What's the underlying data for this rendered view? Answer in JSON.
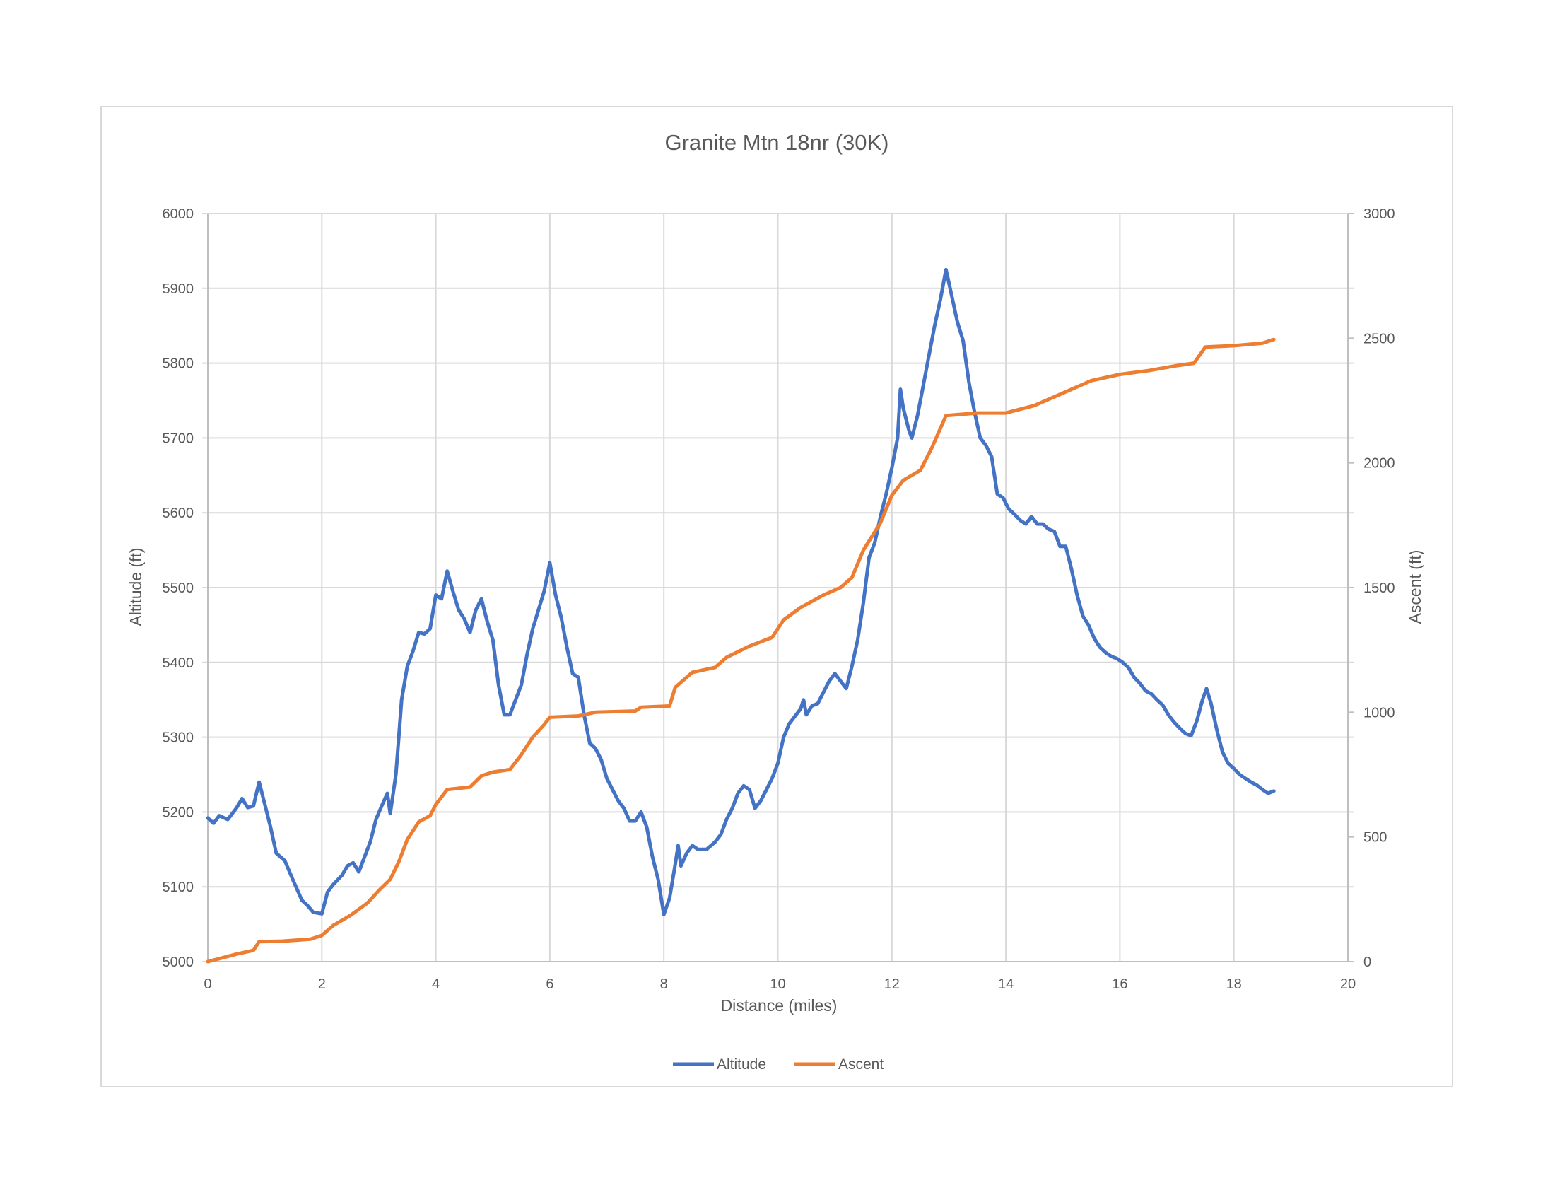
{
  "chart_data": {
    "type": "line",
    "title": "Granite Mtn 18nr (30K)",
    "xlabel": "Distance (miles)",
    "ylabel": "Altitude (ft)",
    "y2label": "Ascent (ft)",
    "xlim": [
      0,
      20
    ],
    "ylim": [
      5000,
      6000
    ],
    "y2lim": [
      0,
      3000
    ],
    "x_ticks": [
      0,
      2,
      4,
      6,
      8,
      10,
      12,
      14,
      16,
      18,
      20
    ],
    "y_ticks": [
      5000,
      5100,
      5200,
      5300,
      5400,
      5500,
      5600,
      5700,
      5800,
      5900,
      6000
    ],
    "y2_ticks": [
      0,
      500,
      1000,
      1500,
      2000,
      2500,
      3000
    ],
    "grid": true,
    "legend": "bottom",
    "series": [
      {
        "name": "Altitude",
        "axis": "left",
        "color": "#4472c4",
        "points": [
          [
            0,
            5192
          ],
          [
            0.1,
            5185
          ],
          [
            0.2,
            5195
          ],
          [
            0.35,
            5190
          ],
          [
            0.5,
            5205
          ],
          [
            0.6,
            5218
          ],
          [
            0.7,
            5206
          ],
          [
            0.8,
            5208
          ],
          [
            0.9,
            5240
          ],
          [
            1.0,
            5210
          ],
          [
            1.1,
            5180
          ],
          [
            1.2,
            5145
          ],
          [
            1.35,
            5135
          ],
          [
            1.5,
            5108
          ],
          [
            1.65,
            5082
          ],
          [
            1.75,
            5075
          ],
          [
            1.85,
            5066
          ],
          [
            2.0,
            5064
          ],
          [
            2.1,
            5093
          ],
          [
            2.2,
            5103
          ],
          [
            2.35,
            5115
          ],
          [
            2.45,
            5128
          ],
          [
            2.55,
            5132
          ],
          [
            2.65,
            5120
          ],
          [
            2.75,
            5140
          ],
          [
            2.85,
            5160
          ],
          [
            2.95,
            5190
          ],
          [
            3.05,
            5208
          ],
          [
            3.15,
            5225
          ],
          [
            3.2,
            5198
          ],
          [
            3.3,
            5250
          ],
          [
            3.35,
            5300
          ],
          [
            3.4,
            5350
          ],
          [
            3.5,
            5395
          ],
          [
            3.6,
            5415
          ],
          [
            3.7,
            5440
          ],
          [
            3.8,
            5438
          ],
          [
            3.9,
            5445
          ],
          [
            4.0,
            5490
          ],
          [
            4.1,
            5485
          ],
          [
            4.2,
            5522
          ],
          [
            4.3,
            5495
          ],
          [
            4.4,
            5470
          ],
          [
            4.5,
            5458
          ],
          [
            4.6,
            5440
          ],
          [
            4.7,
            5470
          ],
          [
            4.8,
            5485
          ],
          [
            4.9,
            5455
          ],
          [
            5.0,
            5430
          ],
          [
            5.1,
            5370
          ],
          [
            5.2,
            5330
          ],
          [
            5.3,
            5330
          ],
          [
            5.4,
            5350
          ],
          [
            5.5,
            5370
          ],
          [
            5.6,
            5410
          ],
          [
            5.7,
            5445
          ],
          [
            5.8,
            5470
          ],
          [
            5.9,
            5495
          ],
          [
            6.0,
            5533
          ],
          [
            6.1,
            5490
          ],
          [
            6.2,
            5460
          ],
          [
            6.3,
            5420
          ],
          [
            6.4,
            5385
          ],
          [
            6.5,
            5380
          ],
          [
            6.6,
            5330
          ],
          [
            6.7,
            5292
          ],
          [
            6.8,
            5285
          ],
          [
            6.9,
            5270
          ],
          [
            7.0,
            5245
          ],
          [
            7.1,
            5230
          ],
          [
            7.2,
            5215
          ],
          [
            7.3,
            5205
          ],
          [
            7.4,
            5188
          ],
          [
            7.5,
            5188
          ],
          [
            7.6,
            5200
          ],
          [
            7.7,
            5180
          ],
          [
            7.8,
            5140
          ],
          [
            7.9,
            5110
          ],
          [
            8.0,
            5063
          ],
          [
            8.1,
            5085
          ],
          [
            8.2,
            5130
          ],
          [
            8.25,
            5155
          ],
          [
            8.3,
            5128
          ],
          [
            8.4,
            5145
          ],
          [
            8.5,
            5155
          ],
          [
            8.6,
            5150
          ],
          [
            8.75,
            5150
          ],
          [
            8.9,
            5160
          ],
          [
            9.0,
            5170
          ],
          [
            9.1,
            5190
          ],
          [
            9.2,
            5205
          ],
          [
            9.3,
            5225
          ],
          [
            9.4,
            5235
          ],
          [
            9.5,
            5230
          ],
          [
            9.6,
            5205
          ],
          [
            9.7,
            5215
          ],
          [
            9.8,
            5230
          ],
          [
            9.9,
            5245
          ],
          [
            10.0,
            5265
          ],
          [
            10.1,
            5300
          ],
          [
            10.2,
            5318
          ],
          [
            10.3,
            5328
          ],
          [
            10.4,
            5338
          ],
          [
            10.45,
            5350
          ],
          [
            10.5,
            5330
          ],
          [
            10.6,
            5342
          ],
          [
            10.7,
            5345
          ],
          [
            10.8,
            5360
          ],
          [
            10.9,
            5375
          ],
          [
            11.0,
            5385
          ],
          [
            11.1,
            5375
          ],
          [
            11.2,
            5365
          ],
          [
            11.3,
            5395
          ],
          [
            11.4,
            5430
          ],
          [
            11.5,
            5480
          ],
          [
            11.6,
            5540
          ],
          [
            11.7,
            5560
          ],
          [
            11.8,
            5595
          ],
          [
            11.9,
            5625
          ],
          [
            12.0,
            5660
          ],
          [
            12.1,
            5700
          ],
          [
            12.15,
            5765
          ],
          [
            12.2,
            5740
          ],
          [
            12.3,
            5710
          ],
          [
            12.35,
            5700
          ],
          [
            12.45,
            5730
          ],
          [
            12.55,
            5770
          ],
          [
            12.65,
            5810
          ],
          [
            12.75,
            5850
          ],
          [
            12.85,
            5885
          ],
          [
            12.95,
            5925
          ],
          [
            13.05,
            5890
          ],
          [
            13.15,
            5855
          ],
          [
            13.25,
            5830
          ],
          [
            13.35,
            5775
          ],
          [
            13.45,
            5735
          ],
          [
            13.55,
            5700
          ],
          [
            13.65,
            5690
          ],
          [
            13.75,
            5675
          ],
          [
            13.85,
            5625
          ],
          [
            13.95,
            5620
          ],
          [
            14.05,
            5605
          ],
          [
            14.15,
            5598
          ],
          [
            14.25,
            5590
          ],
          [
            14.35,
            5585
          ],
          [
            14.45,
            5595
          ],
          [
            14.55,
            5585
          ],
          [
            14.65,
            5585
          ],
          [
            14.75,
            5578
          ],
          [
            14.85,
            5575
          ],
          [
            14.95,
            5555
          ],
          [
            15.05,
            5555
          ],
          [
            15.15,
            5525
          ],
          [
            15.25,
            5490
          ],
          [
            15.35,
            5462
          ],
          [
            15.45,
            5450
          ],
          [
            15.55,
            5432
          ],
          [
            15.65,
            5420
          ],
          [
            15.75,
            5413
          ],
          [
            15.85,
            5408
          ],
          [
            15.95,
            5405
          ],
          [
            16.05,
            5400
          ],
          [
            16.15,
            5393
          ],
          [
            16.25,
            5380
          ],
          [
            16.35,
            5372
          ],
          [
            16.45,
            5362
          ],
          [
            16.55,
            5358
          ],
          [
            16.65,
            5350
          ],
          [
            16.75,
            5343
          ],
          [
            16.85,
            5330
          ],
          [
            16.95,
            5320
          ],
          [
            17.05,
            5312
          ],
          [
            17.15,
            5305
          ],
          [
            17.25,
            5302
          ],
          [
            17.35,
            5322
          ],
          [
            17.45,
            5350
          ],
          [
            17.52,
            5365
          ],
          [
            17.6,
            5345
          ],
          [
            17.7,
            5310
          ],
          [
            17.8,
            5280
          ],
          [
            17.9,
            5265
          ],
          [
            18.0,
            5258
          ],
          [
            18.1,
            5250
          ],
          [
            18.2,
            5245
          ],
          [
            18.3,
            5240
          ],
          [
            18.4,
            5236
          ],
          [
            18.5,
            5230
          ],
          [
            18.6,
            5225
          ],
          [
            18.7,
            5228
          ]
        ]
      },
      {
        "name": "Ascent",
        "axis": "right",
        "color": "#ed7d31",
        "points": [
          [
            0,
            0
          ],
          [
            0.2,
            12
          ],
          [
            0.5,
            30
          ],
          [
            0.8,
            45
          ],
          [
            0.9,
            80
          ],
          [
            1.3,
            82
          ],
          [
            1.8,
            90
          ],
          [
            2.0,
            105
          ],
          [
            2.2,
            145
          ],
          [
            2.5,
            185
          ],
          [
            2.8,
            235
          ],
          [
            3.0,
            285
          ],
          [
            3.2,
            330
          ],
          [
            3.35,
            400
          ],
          [
            3.5,
            490
          ],
          [
            3.7,
            560
          ],
          [
            3.9,
            585
          ],
          [
            4.0,
            630
          ],
          [
            4.2,
            690
          ],
          [
            4.6,
            700
          ],
          [
            4.8,
            745
          ],
          [
            5.0,
            760
          ],
          [
            5.3,
            770
          ],
          [
            5.5,
            830
          ],
          [
            5.7,
            900
          ],
          [
            5.9,
            950
          ],
          [
            6.0,
            980
          ],
          [
            6.5,
            985
          ],
          [
            6.8,
            1000
          ],
          [
            7.5,
            1005
          ],
          [
            7.6,
            1020
          ],
          [
            8.1,
            1025
          ],
          [
            8.2,
            1100
          ],
          [
            8.5,
            1160
          ],
          [
            8.9,
            1180
          ],
          [
            9.1,
            1220
          ],
          [
            9.5,
            1265
          ],
          [
            9.9,
            1300
          ],
          [
            10.1,
            1370
          ],
          [
            10.4,
            1420
          ],
          [
            10.8,
            1470
          ],
          [
            11.1,
            1500
          ],
          [
            11.3,
            1540
          ],
          [
            11.5,
            1650
          ],
          [
            11.8,
            1760
          ],
          [
            12.0,
            1870
          ],
          [
            12.2,
            1930
          ],
          [
            12.5,
            1970
          ],
          [
            12.7,
            2060
          ],
          [
            12.95,
            2190
          ],
          [
            13.5,
            2200
          ],
          [
            14.0,
            2200
          ],
          [
            14.5,
            2230
          ],
          [
            15.0,
            2280
          ],
          [
            15.5,
            2330
          ],
          [
            16.0,
            2355
          ],
          [
            16.5,
            2370
          ],
          [
            17.0,
            2390
          ],
          [
            17.3,
            2400
          ],
          [
            17.5,
            2465
          ],
          [
            18.0,
            2470
          ],
          [
            18.5,
            2480
          ],
          [
            18.7,
            2495
          ]
        ]
      }
    ]
  }
}
